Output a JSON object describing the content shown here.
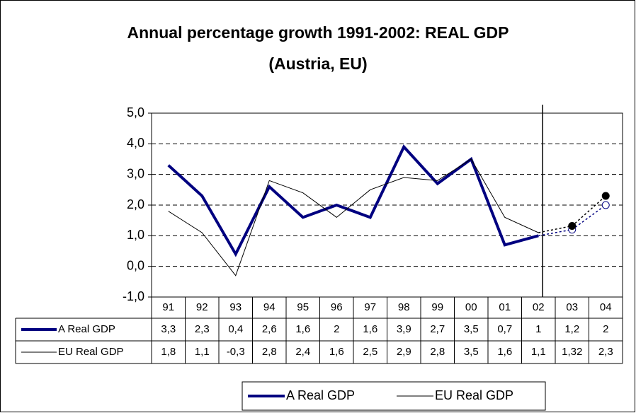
{
  "chart_data": {
    "type": "line",
    "title": [
      "Annual percentage growth 1991-2002: REAL GDP",
      "(Austria, EU)"
    ],
    "categories": [
      "91",
      "92",
      "93",
      "94",
      "95",
      "96",
      "97",
      "98",
      "99",
      "00",
      "01",
      "02",
      "03",
      "04"
    ],
    "forecast_from": "02",
    "series": [
      {
        "name": "A Real GDP",
        "color": "#000080",
        "width": 4,
        "values": [
          3.3,
          2.3,
          0.4,
          2.6,
          1.6,
          2,
          1.6,
          3.9,
          2.7,
          3.5,
          0.7,
          1,
          1.2,
          2
        ],
        "value_labels": [
          "3,3",
          "2,3",
          "0,4",
          "2,6",
          "1,6",
          "2",
          "1,6",
          "3,9",
          "2,7",
          "3,5",
          "0,7",
          "1",
          "1,2",
          "2"
        ],
        "marker": "open"
      },
      {
        "name": "EU Real GDP",
        "color": "#000000",
        "width": 1,
        "values": [
          1.8,
          1.1,
          -0.3,
          2.8,
          2.4,
          1.6,
          2.5,
          2.9,
          2.8,
          3.5,
          1.6,
          1.1,
          1.32,
          2.3
        ],
        "value_labels": [
          "1,8",
          "1,1",
          "-0,3",
          "2,8",
          "2,4",
          "1,6",
          "2,5",
          "2,9",
          "2,8",
          "3,5",
          "1,6",
          "1,1",
          "1,32",
          "2,3"
        ],
        "marker": "filled"
      }
    ],
    "ylim": [
      -1,
      5
    ],
    "yticks": [
      {
        "value": -1,
        "label": "-1,0"
      },
      {
        "value": 0,
        "label": "0,0"
      },
      {
        "value": 1,
        "label": "1,0"
      },
      {
        "value": 2,
        "label": "2,0"
      },
      {
        "value": 3,
        "label": "3,0"
      },
      {
        "value": 4,
        "label": "4,0"
      },
      {
        "value": 5,
        "label": "5,0"
      }
    ],
    "grid": true
  }
}
